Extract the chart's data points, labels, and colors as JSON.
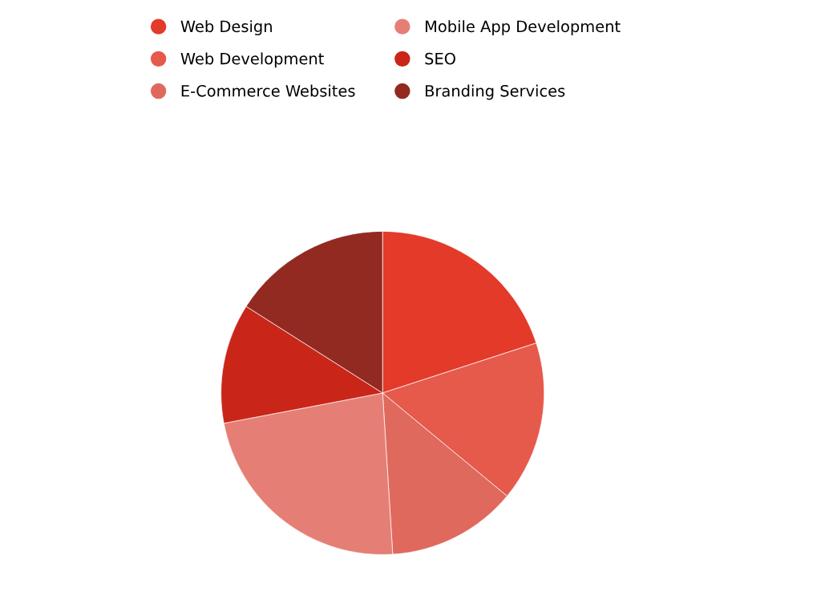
{
  "chart_data": {
    "type": "pie",
    "categories": [
      "Web Design",
      "Web Development",
      "E-Commerce Websites",
      "Mobile App Development",
      "SEO",
      "Branding Services"
    ],
    "values": [
      20,
      16,
      13,
      23,
      12,
      16
    ],
    "colors": [
      "#e33a2a",
      "#e55a4b",
      "#e0695e",
      "#e57f75",
      "#c92619",
      "#922a22"
    ],
    "legend": "top"
  }
}
